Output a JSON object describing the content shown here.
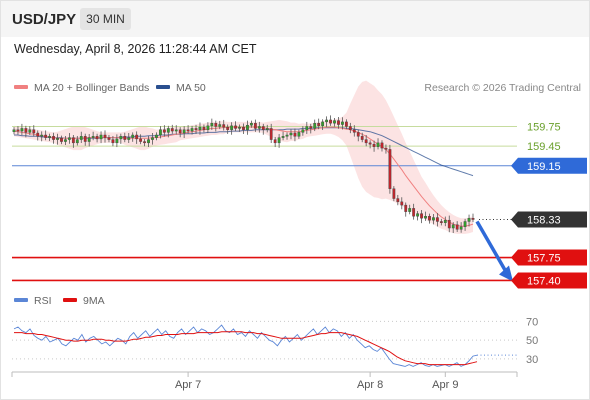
{
  "header": {
    "pair": "USD/JPY",
    "timeframe": "30 MIN",
    "datetime": "Wednesday, April 8, 2026 11:28:44 AM CET"
  },
  "legend": {
    "ma20_label": "MA 20 + Bollinger Bands",
    "ma50_label": "MA 50",
    "ma20_color": "#f08080",
    "ma50_color": "#2a4f8f",
    "credit": "Research © 2026 Trading Central"
  },
  "rsi_legend": {
    "rsi_label": "RSI",
    "ma_label": "9MA",
    "rsi_color": "#5b86d6",
    "ma_color": "#e01010"
  },
  "chart_data": {
    "type": "candlestick",
    "price_range": [
      157.3,
      160.2
    ],
    "x_ticks": [
      {
        "label": "Apr 7",
        "index": 44
      },
      {
        "label": "Apr 8",
        "index": 90
      },
      {
        "label": "Apr 9",
        "index": 109
      }
    ],
    "levels": [
      {
        "value": 159.75,
        "label": "159.75",
        "kind": "resistance"
      },
      {
        "value": 159.45,
        "label": "159.45",
        "kind": "resistance"
      },
      {
        "value": 159.15,
        "label": "159.15",
        "kind": "pivot"
      },
      {
        "value": 158.33,
        "label": "158.33",
        "kind": "last"
      },
      {
        "value": 157.75,
        "label": "157.75",
        "kind": "support"
      },
      {
        "value": 157.4,
        "label": "157.40",
        "kind": "target"
      }
    ],
    "close": [
      159.7,
      159.68,
      159.72,
      159.66,
      159.7,
      159.65,
      159.6,
      159.62,
      159.58,
      159.6,
      159.55,
      159.57,
      159.52,
      159.55,
      159.58,
      159.5,
      159.55,
      159.6,
      159.52,
      159.58,
      159.6,
      159.56,
      159.62,
      159.58,
      159.55,
      159.5,
      159.56,
      159.6,
      159.55,
      159.58,
      159.62,
      159.56,
      159.52,
      159.5,
      159.55,
      159.58,
      159.62,
      159.7,
      159.66,
      159.72,
      159.68,
      159.7,
      159.65,
      159.7,
      159.68,
      159.72,
      159.7,
      159.74,
      159.7,
      159.76,
      159.8,
      159.75,
      159.78,
      159.74,
      159.7,
      159.76,
      159.72,
      159.74,
      159.7,
      159.77,
      159.8,
      159.72,
      159.75,
      159.7,
      159.72,
      159.55,
      159.5,
      159.58,
      159.6,
      159.62,
      159.65,
      159.6,
      159.66,
      159.7,
      159.75,
      159.72,
      159.8,
      159.76,
      159.82,
      159.85,
      159.8,
      159.84,
      159.78,
      159.82,
      159.75,
      159.7,
      159.66,
      159.6,
      159.55,
      159.5,
      159.48,
      159.44,
      159.5,
      159.42,
      159.4,
      158.8,
      158.65,
      158.6,
      158.55,
      158.45,
      158.5,
      158.38,
      158.42,
      158.35,
      158.38,
      158.32,
      158.36,
      158.3,
      158.28,
      158.32,
      158.2,
      158.25,
      158.18,
      158.22,
      158.3,
      158.35,
      158.33
    ],
    "ma20": [
      159.68,
      159.67,
      159.66,
      159.65,
      159.64,
      159.63,
      159.62,
      159.61,
      159.6,
      159.59,
      159.58,
      159.57,
      159.57,
      159.57,
      159.57,
      159.57,
      159.57,
      159.57,
      159.58,
      159.58,
      159.58,
      159.58,
      159.58,
      159.58,
      159.58,
      159.58,
      159.58,
      159.58,
      159.57,
      159.57,
      159.57,
      159.57,
      159.57,
      159.57,
      159.57,
      159.58,
      159.58,
      159.59,
      159.6,
      159.61,
      159.62,
      159.63,
      159.64,
      159.65,
      159.66,
      159.67,
      159.68,
      159.69,
      159.7,
      159.71,
      159.72,
      159.72,
      159.73,
      159.73,
      159.74,
      159.74,
      159.74,
      159.74,
      159.74,
      159.74,
      159.74,
      159.74,
      159.74,
      159.73,
      159.72,
      159.71,
      159.7,
      159.69,
      159.68,
      159.67,
      159.67,
      159.67,
      159.67,
      159.68,
      159.69,
      159.7,
      159.71,
      159.72,
      159.73,
      159.74,
      159.74,
      159.74,
      159.73,
      159.72,
      159.71,
      159.7,
      159.68,
      159.66,
      159.63,
      159.6,
      159.56,
      159.52,
      159.48,
      159.44,
      159.4,
      159.33,
      159.25,
      159.17,
      159.09,
      159.0,
      158.92,
      158.84,
      158.76,
      158.68,
      158.61,
      158.54,
      158.48,
      158.42,
      158.37,
      158.33,
      158.29,
      158.26,
      158.24,
      158.23,
      158.23,
      158.24,
      158.26
    ],
    "ma50": [
      159.62,
      159.62,
      159.61,
      159.61,
      159.6,
      159.6,
      159.6,
      159.59,
      159.59,
      159.58,
      159.58,
      159.58,
      159.58,
      159.57,
      159.57,
      159.57,
      159.57,
      159.57,
      159.57,
      159.57,
      159.57,
      159.57,
      159.58,
      159.58,
      159.58,
      159.58,
      159.58,
      159.59,
      159.59,
      159.59,
      159.59,
      159.6,
      159.6,
      159.6,
      159.61,
      159.61,
      159.61,
      159.62,
      159.62,
      159.62,
      159.63,
      159.63,
      159.63,
      159.64,
      159.64,
      159.64,
      159.65,
      159.65,
      159.65,
      159.66,
      159.66,
      159.66,
      159.67,
      159.67,
      159.67,
      159.68,
      159.68,
      159.68,
      159.69,
      159.69,
      159.69,
      159.7,
      159.7,
      159.7,
      159.7,
      159.7,
      159.7,
      159.7,
      159.7,
      159.71,
      159.71,
      159.71,
      159.71,
      159.72,
      159.72,
      159.72,
      159.73,
      159.73,
      159.73,
      159.73,
      159.73,
      159.73,
      159.73,
      159.73,
      159.72,
      159.72,
      159.71,
      159.7,
      159.69,
      159.68,
      159.67,
      159.65,
      159.63,
      159.61,
      159.58,
      159.55,
      159.52,
      159.49,
      159.46,
      159.43,
      159.4,
      159.37,
      159.34,
      159.31,
      159.28,
      159.25,
      159.22,
      159.19,
      159.16,
      159.14,
      159.12,
      159.1,
      159.08,
      159.06,
      159.04,
      159.02,
      159.0
    ],
    "bb_width": [
      0.08,
      0.08,
      0.08,
      0.08,
      0.08,
      0.08,
      0.08,
      0.08,
      0.08,
      0.08,
      0.08,
      0.1,
      0.12,
      0.14,
      0.16,
      0.18,
      0.18,
      0.18,
      0.16,
      0.14,
      0.12,
      0.1,
      0.08,
      0.08,
      0.08,
      0.08,
      0.08,
      0.08,
      0.1,
      0.12,
      0.14,
      0.16,
      0.18,
      0.18,
      0.16,
      0.14,
      0.12,
      0.12,
      0.12,
      0.12,
      0.12,
      0.12,
      0.1,
      0.1,
      0.1,
      0.1,
      0.1,
      0.1,
      0.1,
      0.1,
      0.1,
      0.1,
      0.1,
      0.1,
      0.08,
      0.08,
      0.08,
      0.08,
      0.08,
      0.08,
      0.08,
      0.08,
      0.08,
      0.08,
      0.1,
      0.12,
      0.14,
      0.16,
      0.16,
      0.16,
      0.14,
      0.14,
      0.12,
      0.12,
      0.1,
      0.1,
      0.1,
      0.1,
      0.1,
      0.1,
      0.1,
      0.12,
      0.14,
      0.18,
      0.25,
      0.4,
      0.55,
      0.7,
      0.8,
      0.85,
      0.85,
      0.85,
      0.82,
      0.8,
      0.75,
      0.7,
      0.65,
      0.6,
      0.55,
      0.5,
      0.45,
      0.4,
      0.35,
      0.3,
      0.28,
      0.25,
      0.22,
      0.2,
      0.18,
      0.16,
      0.15,
      0.14,
      0.13,
      0.12,
      0.12,
      0.12,
      0.12
    ],
    "rsi_range": [
      15,
      80
    ],
    "rsi_levels": [
      70,
      50,
      30
    ],
    "rsi": [
      62,
      64,
      60,
      58,
      62,
      55,
      52,
      50,
      54,
      48,
      50,
      52,
      46,
      44,
      48,
      52,
      50,
      56,
      48,
      52,
      54,
      50,
      46,
      48,
      44,
      48,
      52,
      50,
      46,
      54,
      58,
      52,
      56,
      60,
      54,
      58,
      62,
      56,
      60,
      54,
      52,
      58,
      62,
      56,
      60,
      64,
      58,
      62,
      60,
      56,
      58,
      62,
      66,
      60,
      58,
      62,
      56,
      58,
      54,
      60,
      56,
      52,
      58,
      54,
      50,
      48,
      44,
      50,
      54,
      48,
      52,
      56,
      50,
      54,
      58,
      62,
      56,
      60,
      64,
      58,
      62,
      60,
      54,
      58,
      52,
      56,
      50,
      46,
      42,
      44,
      40,
      38,
      42,
      36,
      30,
      25,
      24,
      23,
      22,
      24,
      22,
      24,
      26,
      23,
      22,
      24,
      22,
      23,
      24,
      22,
      24,
      26,
      22,
      24,
      28,
      33,
      34
    ],
    "rsi_ma": [
      58,
      58,
      58,
      57,
      57,
      57,
      56,
      56,
      55,
      54,
      53,
      52,
      51,
      50,
      50,
      49,
      49,
      50,
      50,
      50,
      51,
      51,
      51,
      50,
      50,
      49,
      49,
      49,
      49,
      50,
      51,
      51,
      52,
      53,
      53,
      54,
      55,
      55,
      56,
      56,
      56,
      56,
      57,
      57,
      57,
      57,
      58,
      58,
      58,
      58,
      58,
      58,
      59,
      59,
      59,
      59,
      59,
      59,
      58,
      58,
      58,
      57,
      57,
      56,
      55,
      54,
      53,
      52,
      52,
      52,
      52,
      52,
      52,
      53,
      54,
      55,
      56,
      57,
      57,
      58,
      58,
      58,
      58,
      57,
      56,
      55,
      54,
      52,
      50,
      48,
      46,
      44,
      42,
      40,
      38,
      35,
      32,
      30,
      28,
      27,
      26,
      25,
      25,
      25,
      24,
      24,
      24,
      24,
      24,
      24,
      24,
      24,
      24,
      24,
      25,
      26,
      27
    ]
  }
}
